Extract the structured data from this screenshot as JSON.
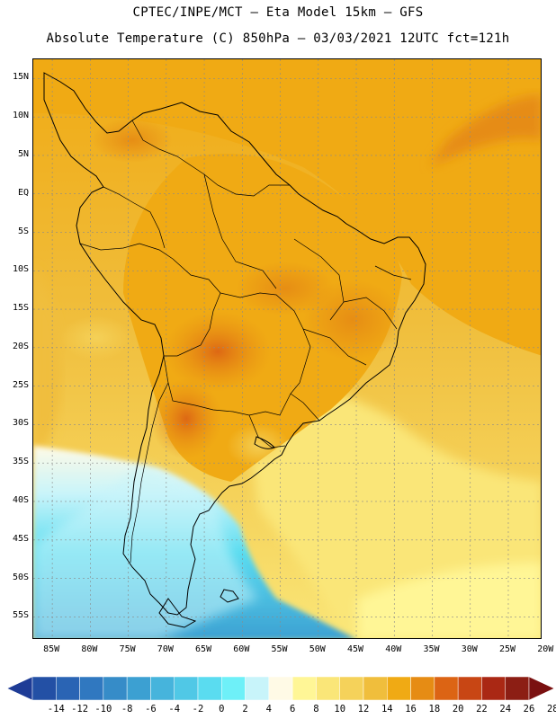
{
  "title_line1": "CPTEC/INPE/MCT –  Eta Model 15km – GFS",
  "title_line2": "Absolute Temperature (C) 850hPa – 03/03/2021 12UTC fct=121h",
  "lat_labels": [
    {
      "text": "15N",
      "lat": 15
    },
    {
      "text": "10N",
      "lat": 10
    },
    {
      "text": "5N",
      "lat": 5
    },
    {
      "text": "EQ",
      "lat": 0
    },
    {
      "text": "5S",
      "lat": -5
    },
    {
      "text": "10S",
      "lat": -10
    },
    {
      "text": "15S",
      "lat": -15
    },
    {
      "text": "20S",
      "lat": -20
    },
    {
      "text": "25S",
      "lat": -25
    },
    {
      "text": "30S",
      "lat": -30
    },
    {
      "text": "35S",
      "lat": -35
    },
    {
      "text": "40S",
      "lat": -40
    },
    {
      "text": "45S",
      "lat": -45
    },
    {
      "text": "50S",
      "lat": -50
    },
    {
      "text": "55S",
      "lat": -55
    }
  ],
  "lon_labels": [
    {
      "text": "85W",
      "lon": -85
    },
    {
      "text": "80W",
      "lon": -80
    },
    {
      "text": "75W",
      "lon": -75
    },
    {
      "text": "70W",
      "lon": -70
    },
    {
      "text": "65W",
      "lon": -65
    },
    {
      "text": "60W",
      "lon": -60
    },
    {
      "text": "55W",
      "lon": -55
    },
    {
      "text": "50W",
      "lon": -50
    },
    {
      "text": "45W",
      "lon": -45
    },
    {
      "text": "40W",
      "lon": -40
    },
    {
      "text": "35W",
      "lon": -35
    },
    {
      "text": "30W",
      "lon": -30
    },
    {
      "text": "25W",
      "lon": -25
    },
    {
      "text": "20W",
      "lon": -20
    }
  ],
  "colorbar": {
    "labels": [
      "-14",
      "-12",
      "-10",
      "-8",
      "-6",
      "-4",
      "-2",
      "0",
      "2",
      "4",
      "6",
      "8",
      "10",
      "12",
      "14",
      "16",
      "18",
      "20",
      "22",
      "24",
      "26",
      "28"
    ],
    "colors": [
      "#1e3c96",
      "#2350a5",
      "#2a64b4",
      "#3078c0",
      "#368cc8",
      "#3ca0d2",
      "#46b4dc",
      "#50c8e6",
      "#5adcf0",
      "#6ef0f8",
      "#c8f4fa",
      "#fffae6",
      "#fff696",
      "#fae678",
      "#f5d25a",
      "#f0be3c",
      "#f0aa14",
      "#e68c14",
      "#dc6414",
      "#c84614",
      "#aa2814",
      "#8c1e14",
      "#7a1010"
    ]
  }
}
